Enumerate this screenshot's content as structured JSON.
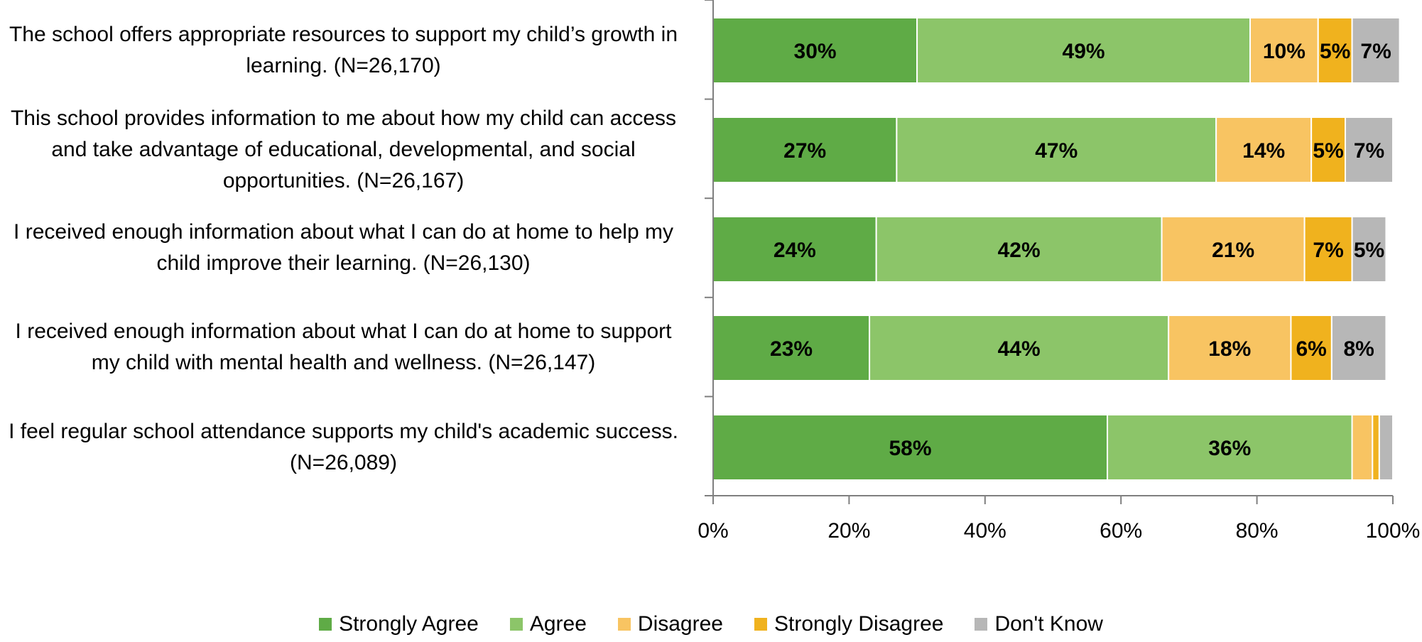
{
  "chart_data": {
    "type": "bar",
    "orientation": "horizontal",
    "stacked": true,
    "categories": [
      "The school offers appropriate resources to support my child’s growth in learning. (N=26,170)",
      "This school provides information to me about how my child can access and take advantage of educational, developmental, and social opportunities. (N=26,167)",
      "I received enough information about what I can do at home to help my child improve their learning. (N=26,130)",
      "I received enough information about what I can do at home to support my child with mental health and wellness. (N=26,147)",
      "I feel regular school attendance supports my child's academic success. (N=26,089)"
    ],
    "series": [
      {
        "name": "Strongly Agree",
        "color": "#5fab46",
        "values": [
          30,
          27,
          24,
          23,
          58
        ],
        "labels": [
          "30%",
          "27%",
          "24%",
          "23%",
          "58%"
        ]
      },
      {
        "name": "Agree",
        "color": "#8cc569",
        "values": [
          49,
          47,
          42,
          44,
          36
        ],
        "labels": [
          "49%",
          "47%",
          "42%",
          "44%",
          "36%"
        ]
      },
      {
        "name": "Disagree",
        "color": "#f8c462",
        "values": [
          10,
          14,
          21,
          18,
          3
        ],
        "labels": [
          "10%",
          "14%",
          "21%",
          "18%",
          ""
        ]
      },
      {
        "name": "Strongly Disagree",
        "color": "#f0b21e",
        "values": [
          5,
          5,
          7,
          6,
          1
        ],
        "labels": [
          "5%",
          "5%",
          "7%",
          "6%",
          ""
        ]
      },
      {
        "name": "Don't Know",
        "color": "#b7b7b7",
        "values": [
          7,
          7,
          5,
          8,
          2
        ],
        "labels": [
          "7%",
          "7%",
          "5%",
          "8%",
          ""
        ]
      }
    ],
    "xlim": [
      0,
      100
    ],
    "xticks": [
      "0%",
      "20%",
      "40%",
      "60%",
      "80%",
      "100%"
    ],
    "legend_position": "bottom",
    "grid": false
  }
}
